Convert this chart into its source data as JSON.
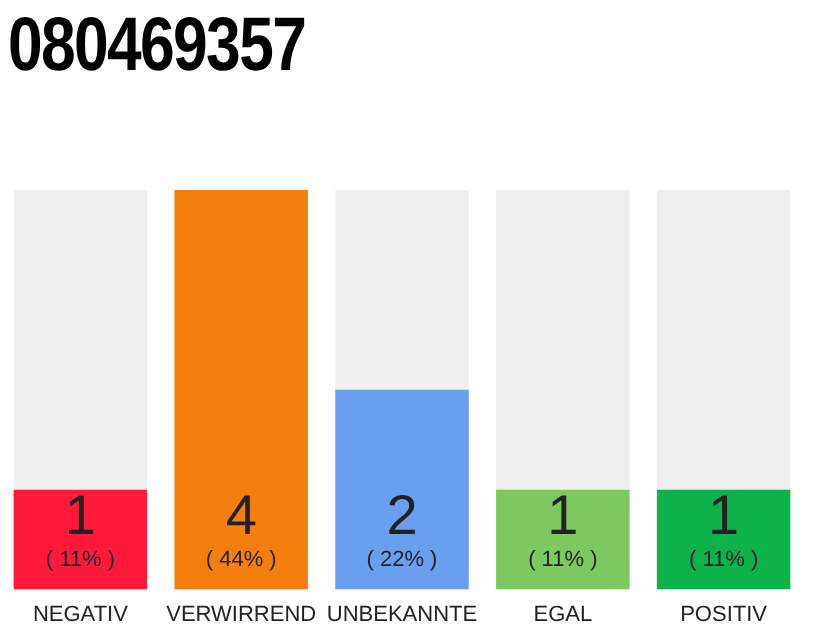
{
  "chart_data": {
    "type": "bar",
    "title": "080469357",
    "categories": [
      "NEGATIV",
      "VERWIRREND",
      "UNBEKANNTE",
      "EGAL",
      "POSITIV"
    ],
    "values": [
      1,
      4,
      2,
      1,
      1
    ],
    "colors": [
      "#ff1a3c",
      "#f47f0e",
      "#6a9ff0",
      "#7ec95f",
      "#0db34a"
    ],
    "value_labels": [
      "1\n( 11% )",
      "4\n( 44% )",
      "2\n( 22% )",
      "1\n( 11% )",
      "1\n( 11% )"
    ],
    "grid": false,
    "legend": false
  }
}
